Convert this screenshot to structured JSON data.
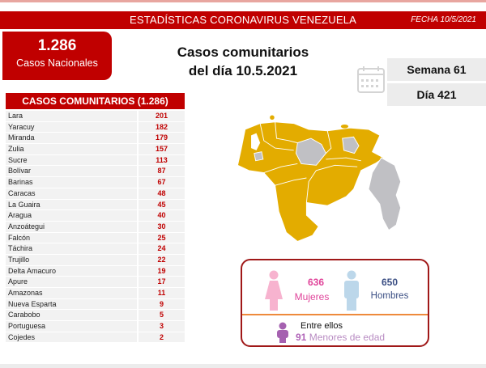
{
  "header": {
    "title": "ESTADÍSTICAS CORONAVIRUS VENEZUELA",
    "date": "FECHA 10/5/2021"
  },
  "national": {
    "total": "1.286",
    "label": "Casos Nacionales"
  },
  "main_title": {
    "line1": "Casos comunitarios",
    "line2": "del día 10.5.2021"
  },
  "calendar": {
    "icon": "calendar-icon",
    "week": "Semana 61",
    "day": "Día 421"
  },
  "table": {
    "header": "CASOS COMUNITARIOS (1.286)",
    "rows": [
      {
        "state": "Lara",
        "cases": "201"
      },
      {
        "state": "Yaracuy",
        "cases": "182"
      },
      {
        "state": "Miranda",
        "cases": "179"
      },
      {
        "state": "Zulia",
        "cases": "157"
      },
      {
        "state": "Sucre",
        "cases": "113"
      },
      {
        "state": "Bolívar",
        "cases": "87"
      },
      {
        "state": "Barinas",
        "cases": "67"
      },
      {
        "state": "Caracas",
        "cases": "48"
      },
      {
        "state": "La Guaira",
        "cases": "45"
      },
      {
        "state": "Aragua",
        "cases": "40"
      },
      {
        "state": "Anzoátegui",
        "cases": "30"
      },
      {
        "state": "Falcón",
        "cases": "25"
      },
      {
        "state": "Táchira",
        "cases": "24"
      },
      {
        "state": "Trujillo",
        "cases": "22"
      },
      {
        "state": "Delta Amacuro",
        "cases": "19"
      },
      {
        "state": "Apure",
        "cases": "17"
      },
      {
        "state": "Amazonas",
        "cases": "11"
      },
      {
        "state": "Nueva Esparta",
        "cases": "9"
      },
      {
        "state": "Carabobo",
        "cases": "5"
      },
      {
        "state": "Portuguesa",
        "cases": "3"
      },
      {
        "state": "Cojedes",
        "cases": "2"
      }
    ]
  },
  "map": {
    "icon": "venezuela-map",
    "colors": {
      "with_cases": "#e3ac00",
      "without_cases": "#c0c0c4"
    }
  },
  "gender": {
    "female": {
      "count": "636",
      "label": "Mujeres",
      "icon": "female-icon",
      "color": "#e0449a"
    },
    "male": {
      "count": "650",
      "label": "Hombres",
      "icon": "male-icon",
      "color": "#3b4f84"
    },
    "minors": {
      "intro": "Entre ellos",
      "count": "91",
      "label": "Menores de edad",
      "icon": "child-icon"
    }
  },
  "colors": {
    "brand_red": "#c00000",
    "box_gray": "#ececec",
    "row_gray": "#f2f2f2"
  }
}
